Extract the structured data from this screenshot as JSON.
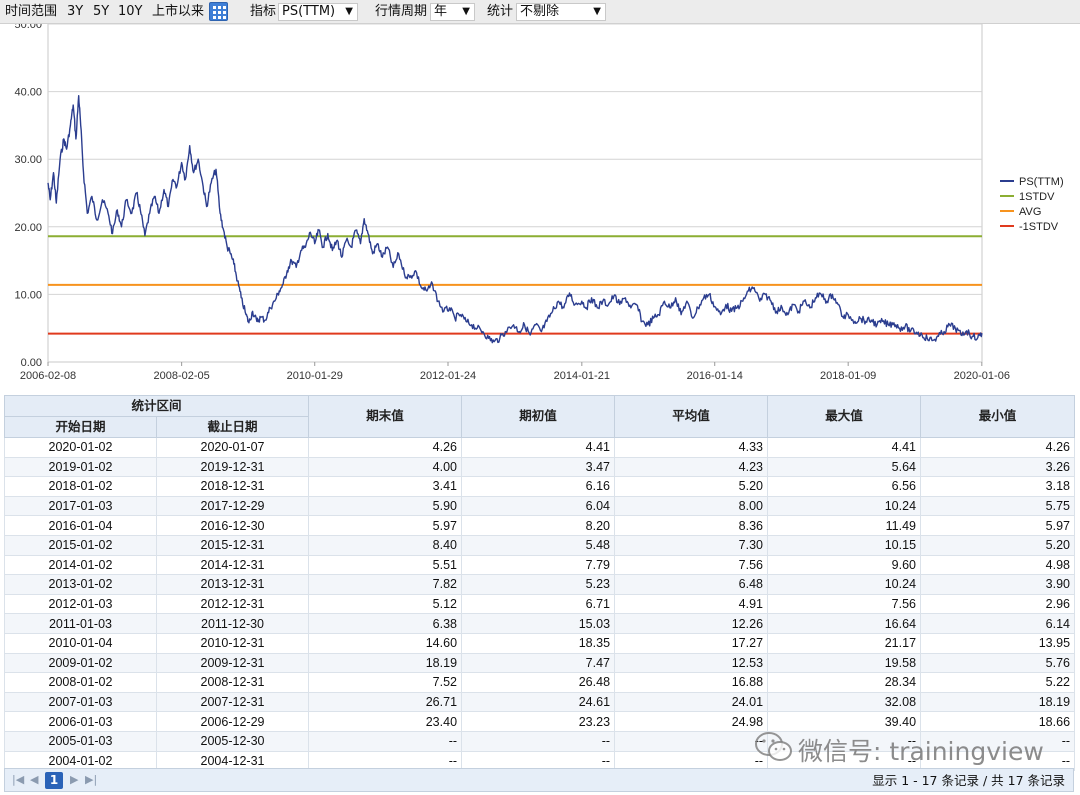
{
  "toolbar": {
    "time_range_label": "时间范围",
    "range_buttons": [
      "3Y",
      "5Y",
      "10Y",
      "上市以来"
    ],
    "indicator_label": "指标",
    "indicator_value": "PS(TTM)",
    "period_label": "行情周期",
    "period_value": "年",
    "stats_label": "统计",
    "stats_value": "不剔除"
  },
  "chart_data": {
    "type": "line",
    "x_tick_labels": [
      "2006-02-08",
      "2008-02-05",
      "2010-01-29",
      "2012-01-24",
      "2014-01-21",
      "2016-01-14",
      "2018-01-09",
      "2020-01-06"
    ],
    "y_tick_labels": [
      "0.00",
      "10.00",
      "20.00",
      "30.00",
      "40.00",
      "50.00"
    ],
    "ylim": [
      0,
      50
    ],
    "xlim": [
      "2006-02-08",
      "2020-01-07"
    ],
    "grid": true,
    "legend_position": "right",
    "series": [
      {
        "name": "PS(TTM)",
        "color": "#2b3d8f",
        "points": [
          [
            "2006-02-08",
            26.5
          ],
          [
            "2006-02-20",
            24.0
          ],
          [
            "2006-03-10",
            28.0
          ],
          [
            "2006-03-25",
            23.5
          ],
          [
            "2006-04-15",
            30.0
          ],
          [
            "2006-05-05",
            33.0
          ],
          [
            "2006-05-20",
            31.5
          ],
          [
            "2006-06-10",
            35.0
          ],
          [
            "2006-06-25",
            38.0
          ],
          [
            "2006-07-10",
            33.0
          ],
          [
            "2006-07-25",
            39.4
          ],
          [
            "2006-08-05",
            35.0
          ],
          [
            "2006-08-20",
            28.0
          ],
          [
            "2006-09-10",
            22.0
          ],
          [
            "2006-10-05",
            24.5
          ],
          [
            "2006-11-01",
            21.0
          ],
          [
            "2006-12-01",
            24.0
          ],
          [
            "2007-01-01",
            22.0
          ],
          [
            "2007-01-25",
            19.0
          ],
          [
            "2007-02-20",
            22.5
          ],
          [
            "2007-03-15",
            20.0
          ],
          [
            "2007-04-10",
            24.0
          ],
          [
            "2007-05-10",
            22.0
          ],
          [
            "2007-06-05",
            25.0
          ],
          [
            "2007-06-25",
            22.5
          ],
          [
            "2007-07-20",
            18.7
          ],
          [
            "2007-08-15",
            22.0
          ],
          [
            "2007-09-10",
            24.5
          ],
          [
            "2007-10-05",
            22.0
          ],
          [
            "2007-11-01",
            25.5
          ],
          [
            "2007-11-25",
            23.0
          ],
          [
            "2007-12-20",
            27.0
          ],
          [
            "2008-01-10",
            26.0
          ],
          [
            "2008-02-05",
            29.5
          ],
          [
            "2008-02-25",
            27.0
          ],
          [
            "2008-03-20",
            32.0
          ],
          [
            "2008-04-10",
            28.0
          ],
          [
            "2008-05-05",
            30.0
          ],
          [
            "2008-06-01",
            26.0
          ],
          [
            "2008-06-20",
            23.0
          ],
          [
            "2008-07-15",
            26.5
          ],
          [
            "2008-08-10",
            28.5
          ],
          [
            "2008-09-01",
            22.0
          ],
          [
            "2008-09-20",
            19.5
          ],
          [
            "2008-10-10",
            17.0
          ],
          [
            "2008-10-28",
            16.0
          ],
          [
            "2008-11-15",
            14.5
          ],
          [
            "2008-12-05",
            12.0
          ],
          [
            "2008-12-25",
            9.5
          ],
          [
            "2009-01-20",
            7.0
          ],
          [
            "2009-02-05",
            5.8
          ],
          [
            "2009-02-25",
            7.5
          ],
          [
            "2009-03-20",
            6.0
          ],
          [
            "2009-04-10",
            6.6
          ],
          [
            "2009-05-05",
            6.2
          ],
          [
            "2009-06-01",
            8.0
          ],
          [
            "2009-06-25",
            9.0
          ],
          [
            "2009-07-20",
            10.5
          ],
          [
            "2009-08-10",
            11.5
          ],
          [
            "2009-09-01",
            13.5
          ],
          [
            "2009-09-25",
            15.0
          ],
          [
            "2009-10-20",
            14.0
          ],
          [
            "2009-11-15",
            16.5
          ],
          [
            "2009-12-10",
            17.0
          ],
          [
            "2010-01-05",
            19.2
          ],
          [
            "2010-01-29",
            17.5
          ],
          [
            "2010-02-20",
            19.5
          ],
          [
            "2010-03-15",
            17.0
          ],
          [
            "2010-04-10",
            19.0
          ],
          [
            "2010-05-05",
            16.5
          ],
          [
            "2010-06-01",
            18.0
          ],
          [
            "2010-06-25",
            15.5
          ],
          [
            "2010-07-20",
            18.0
          ],
          [
            "2010-08-15",
            17.0
          ],
          [
            "2010-09-10",
            19.5
          ],
          [
            "2010-10-05",
            17.5
          ],
          [
            "2010-10-25",
            21.2
          ],
          [
            "2010-11-15",
            19.0
          ],
          [
            "2010-12-10",
            16.0
          ],
          [
            "2011-01-05",
            17.5
          ],
          [
            "2011-02-01",
            15.5
          ],
          [
            "2011-03-01",
            17.0
          ],
          [
            "2011-04-01",
            14.0
          ],
          [
            "2011-05-01",
            16.0
          ],
          [
            "2011-06-01",
            13.0
          ],
          [
            "2011-07-01",
            12.5
          ],
          [
            "2011-08-01",
            13.5
          ],
          [
            "2011-09-01",
            11.0
          ],
          [
            "2011-10-01",
            10.5
          ],
          [
            "2011-11-01",
            11.5
          ],
          [
            "2011-12-01",
            9.0
          ],
          [
            "2012-01-01",
            7.5
          ],
          [
            "2012-02-01",
            8.0
          ],
          [
            "2012-03-01",
            6.5
          ],
          [
            "2012-04-01",
            7.0
          ],
          [
            "2012-05-01",
            6.0
          ],
          [
            "2012-06-01",
            5.5
          ],
          [
            "2012-07-01",
            5.0
          ],
          [
            "2012-08-01",
            4.5
          ],
          [
            "2012-09-01",
            3.5
          ],
          [
            "2012-10-01",
            3.0
          ],
          [
            "2012-11-01",
            3.5
          ],
          [
            "2012-12-01",
            4.5
          ],
          [
            "2013-01-15",
            5.5
          ],
          [
            "2013-02-15",
            4.5
          ],
          [
            "2013-03-15",
            5.5
          ],
          [
            "2013-04-15",
            4.0
          ],
          [
            "2013-05-15",
            5.5
          ],
          [
            "2013-06-15",
            4.5
          ],
          [
            "2013-07-15",
            6.0
          ],
          [
            "2013-08-15",
            7.5
          ],
          [
            "2013-09-15",
            9.0
          ],
          [
            "2013-10-15",
            8.0
          ],
          [
            "2013-11-15",
            10.2
          ],
          [
            "2013-12-15",
            8.5
          ],
          [
            "2014-01-21",
            9.0
          ],
          [
            "2014-02-15",
            8.0
          ],
          [
            "2014-03-15",
            9.5
          ],
          [
            "2014-04-15",
            8.0
          ],
          [
            "2014-05-15",
            9.0
          ],
          [
            "2014-06-15",
            8.5
          ],
          [
            "2014-07-15",
            9.8
          ],
          [
            "2014-08-15",
            8.5
          ],
          [
            "2014-09-15",
            9.5
          ],
          [
            "2014-10-15",
            8.0
          ],
          [
            "2014-11-15",
            8.5
          ],
          [
            "2014-12-15",
            6.0
          ],
          [
            "2015-01-15",
            5.5
          ],
          [
            "2015-02-15",
            6.5
          ],
          [
            "2015-03-15",
            7.0
          ],
          [
            "2015-04-15",
            9.0
          ],
          [
            "2015-05-15",
            8.0
          ],
          [
            "2015-06-15",
            9.5
          ],
          [
            "2015-07-15",
            7.0
          ],
          [
            "2015-08-15",
            9.0
          ],
          [
            "2015-09-15",
            6.5
          ],
          [
            "2015-10-15",
            8.0
          ],
          [
            "2015-11-15",
            9.5
          ],
          [
            "2015-12-15",
            10.0
          ],
          [
            "2016-01-14",
            8.2
          ],
          [
            "2016-02-15",
            7.0
          ],
          [
            "2016-03-15",
            8.5
          ],
          [
            "2016-04-15",
            7.5
          ],
          [
            "2016-05-15",
            8.0
          ],
          [
            "2016-06-15",
            9.0
          ],
          [
            "2016-07-15",
            10.5
          ],
          [
            "2016-08-15",
            11.0
          ],
          [
            "2016-09-15",
            9.0
          ],
          [
            "2016-10-15",
            10.0
          ],
          [
            "2016-11-15",
            9.0
          ],
          [
            "2016-12-15",
            7.5
          ],
          [
            "2017-01-15",
            8.0
          ],
          [
            "2017-02-15",
            7.0
          ],
          [
            "2017-03-15",
            8.5
          ],
          [
            "2017-04-15",
            7.5
          ],
          [
            "2017-05-15",
            9.0
          ],
          [
            "2017-06-15",
            8.0
          ],
          [
            "2017-07-15",
            9.5
          ],
          [
            "2017-08-15",
            10.0
          ],
          [
            "2017-09-15",
            9.0
          ],
          [
            "2017-10-15",
            10.0
          ],
          [
            "2017-11-15",
            8.5
          ],
          [
            "2017-12-15",
            6.5
          ],
          [
            "2018-01-09",
            7.0
          ],
          [
            "2018-02-15",
            6.0
          ],
          [
            "2018-03-15",
            6.5
          ],
          [
            "2018-04-15",
            6.0
          ],
          [
            "2018-05-15",
            6.2
          ],
          [
            "2018-06-15",
            5.5
          ],
          [
            "2018-07-15",
            6.0
          ],
          [
            "2018-08-15",
            5.5
          ],
          [
            "2018-09-15",
            5.8
          ],
          [
            "2018-10-15",
            5.0
          ],
          [
            "2018-11-15",
            5.3
          ],
          [
            "2018-12-15",
            4.6
          ],
          [
            "2019-01-15",
            4.4
          ],
          [
            "2019-02-15",
            4.0
          ],
          [
            "2019-03-15",
            3.5
          ],
          [
            "2019-04-15",
            3.2
          ],
          [
            "2019-05-15",
            3.8
          ],
          [
            "2019-06-15",
            4.5
          ],
          [
            "2019-07-15",
            5.5
          ],
          [
            "2019-08-15",
            5.0
          ],
          [
            "2019-09-15",
            4.0
          ],
          [
            "2019-10-15",
            4.6
          ],
          [
            "2019-11-15",
            3.8
          ],
          [
            "2019-12-15",
            3.6
          ],
          [
            "2020-01-07",
            4.26
          ]
        ]
      },
      {
        "name": "1STDV",
        "color": "#8cae33",
        "value": 18.6
      },
      {
        "name": "AVG",
        "color": "#f7931e",
        "value": 11.4
      },
      {
        "name": "-1STDV",
        "color": "#e03a1e",
        "value": 4.2
      }
    ]
  },
  "table": {
    "group_header": "统计区间",
    "sub_headers": [
      "开始日期",
      "截止日期"
    ],
    "value_headers": [
      "期末值",
      "期初值",
      "平均值",
      "最大值",
      "最小值"
    ],
    "rows": [
      [
        "2020-01-02",
        "2020-01-07",
        "4.26",
        "4.41",
        "4.33",
        "4.41",
        "4.26"
      ],
      [
        "2019-01-02",
        "2019-12-31",
        "4.00",
        "3.47",
        "4.23",
        "5.64",
        "3.26"
      ],
      [
        "2018-01-02",
        "2018-12-31",
        "3.41",
        "6.16",
        "5.20",
        "6.56",
        "3.18"
      ],
      [
        "2017-01-03",
        "2017-12-29",
        "5.90",
        "6.04",
        "8.00",
        "10.24",
        "5.75"
      ],
      [
        "2016-01-04",
        "2016-12-30",
        "5.97",
        "8.20",
        "8.36",
        "11.49",
        "5.97"
      ],
      [
        "2015-01-02",
        "2015-12-31",
        "8.40",
        "5.48",
        "7.30",
        "10.15",
        "5.20"
      ],
      [
        "2014-01-02",
        "2014-12-31",
        "5.51",
        "7.79",
        "7.56",
        "9.60",
        "4.98"
      ],
      [
        "2013-01-02",
        "2013-12-31",
        "7.82",
        "5.23",
        "6.48",
        "10.24",
        "3.90"
      ],
      [
        "2012-01-03",
        "2012-12-31",
        "5.12",
        "6.71",
        "4.91",
        "7.56",
        "2.96"
      ],
      [
        "2011-01-03",
        "2011-12-30",
        "6.38",
        "15.03",
        "12.26",
        "16.64",
        "6.14"
      ],
      [
        "2010-01-04",
        "2010-12-31",
        "14.60",
        "18.35",
        "17.27",
        "21.17",
        "13.95"
      ],
      [
        "2009-01-02",
        "2009-12-31",
        "18.19",
        "7.47",
        "12.53",
        "19.58",
        "5.76"
      ],
      [
        "2008-01-02",
        "2008-12-31",
        "7.52",
        "26.48",
        "16.88",
        "28.34",
        "5.22"
      ],
      [
        "2007-01-03",
        "2007-12-31",
        "26.71",
        "24.61",
        "24.01",
        "32.08",
        "18.19"
      ],
      [
        "2006-01-03",
        "2006-12-29",
        "23.40",
        "23.23",
        "24.98",
        "39.40",
        "18.66"
      ],
      [
        "2005-01-03",
        "2005-12-30",
        "--",
        "--",
        "--",
        "--",
        "--"
      ],
      [
        "2004-01-02",
        "2004-12-31",
        "--",
        "--",
        "--",
        "--",
        "--"
      ]
    ]
  },
  "pager": {
    "current_page": "1",
    "info": "显示 1 - 17 条记录 / 共 17 条记录"
  },
  "watermark": {
    "text": "微信号: trainingview"
  }
}
